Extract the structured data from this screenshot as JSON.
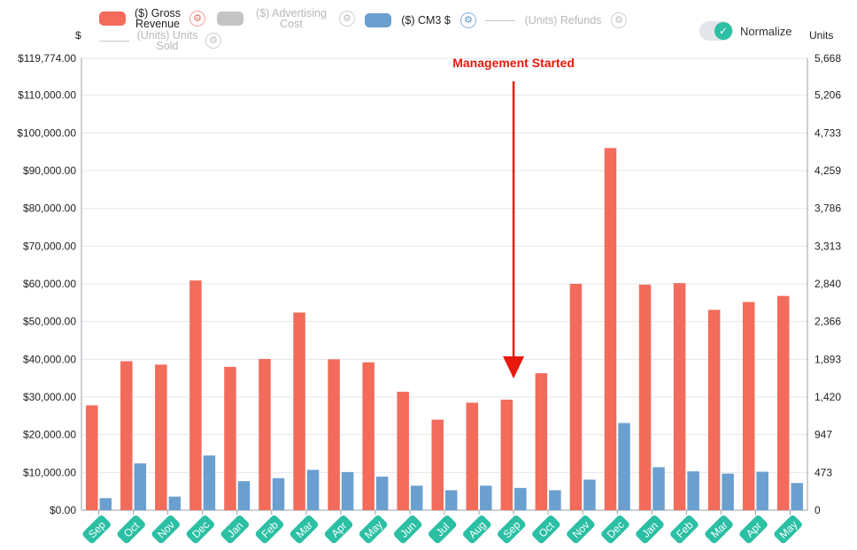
{
  "legend": [
    {
      "id": "gross",
      "label": "($) Gross Revenue",
      "kind": "bar",
      "color": "#f26b5b",
      "active": true,
      "gear_color": "red"
    },
    {
      "id": "adcost",
      "label": "($) Advertising Cost",
      "kind": "bar",
      "color": "#c4c4c4",
      "active": false,
      "gear_color": "grey"
    },
    {
      "id": "cm3",
      "label": "($) CM3 $",
      "kind": "bar",
      "color": "#6a9fcf",
      "active": true,
      "gear_color": "blue"
    },
    {
      "id": "refunds",
      "label": "(Units) Refunds",
      "kind": "line",
      "color": "#c8c8c8",
      "active": false,
      "gear_color": "grey"
    },
    {
      "id": "units",
      "label": "(Units) Units Sold",
      "kind": "line",
      "color": "#c8c8c8",
      "active": false,
      "gear_color": "grey"
    }
  ],
  "normalize": {
    "label": "Normalize",
    "checked": true
  },
  "chart_data": {
    "type": "bar",
    "categories": [
      "Sep",
      "Oct",
      "Nov",
      "Dec",
      "Jan",
      "Feb",
      "Mar",
      "Apr",
      "May",
      "Jun",
      "Jul",
      "Aug",
      "Sep",
      "Oct",
      "Nov",
      "Dec",
      "Jan",
      "Feb",
      "Mar",
      "Apr",
      "May"
    ],
    "series": [
      {
        "name": "($) Gross Revenue",
        "color": "#f26b5b",
        "values": [
          27800,
          39500,
          38600,
          60900,
          38000,
          40100,
          52400,
          40000,
          39200,
          31400,
          24000,
          28500,
          29300,
          36300,
          60000,
          96000,
          59800,
          60200,
          53100,
          55200,
          56800
        ]
      },
      {
        "name": "($) CM3 $",
        "color": "#6a9fcf",
        "values": [
          3200,
          12400,
          3600,
          14500,
          7700,
          8500,
          10700,
          10100,
          8900,
          6500,
          5300,
          6500,
          5900,
          5300,
          8100,
          23100,
          11400,
          10300,
          9700,
          10200,
          7200
        ]
      }
    ],
    "ylabel": "$",
    "y2label": "Units",
    "ylim": [
      0,
      119774
    ],
    "y_ticks": [
      "$0.00",
      "$10,000.00",
      "$20,000.00",
      "$30,000.00",
      "$40,000.00",
      "$50,000.00",
      "$60,000.00",
      "$70,000.00",
      "$80,000.00",
      "$90,000.00",
      "$100,000.00",
      "$110,000.00",
      "$119,774.00"
    ],
    "y_tick_values": [
      0,
      10000,
      20000,
      30000,
      40000,
      50000,
      60000,
      70000,
      80000,
      90000,
      100000,
      110000,
      119774
    ],
    "y2_ticks": [
      "0",
      "473",
      "947",
      "1,420",
      "1,893",
      "2,366",
      "2,840",
      "3,313",
      "3,786",
      "4,259",
      "4,733",
      "5,206",
      "5,668"
    ],
    "grid": true,
    "annotation": {
      "text": "Management Started",
      "category_index": 12,
      "color": "#e8190c"
    }
  }
}
